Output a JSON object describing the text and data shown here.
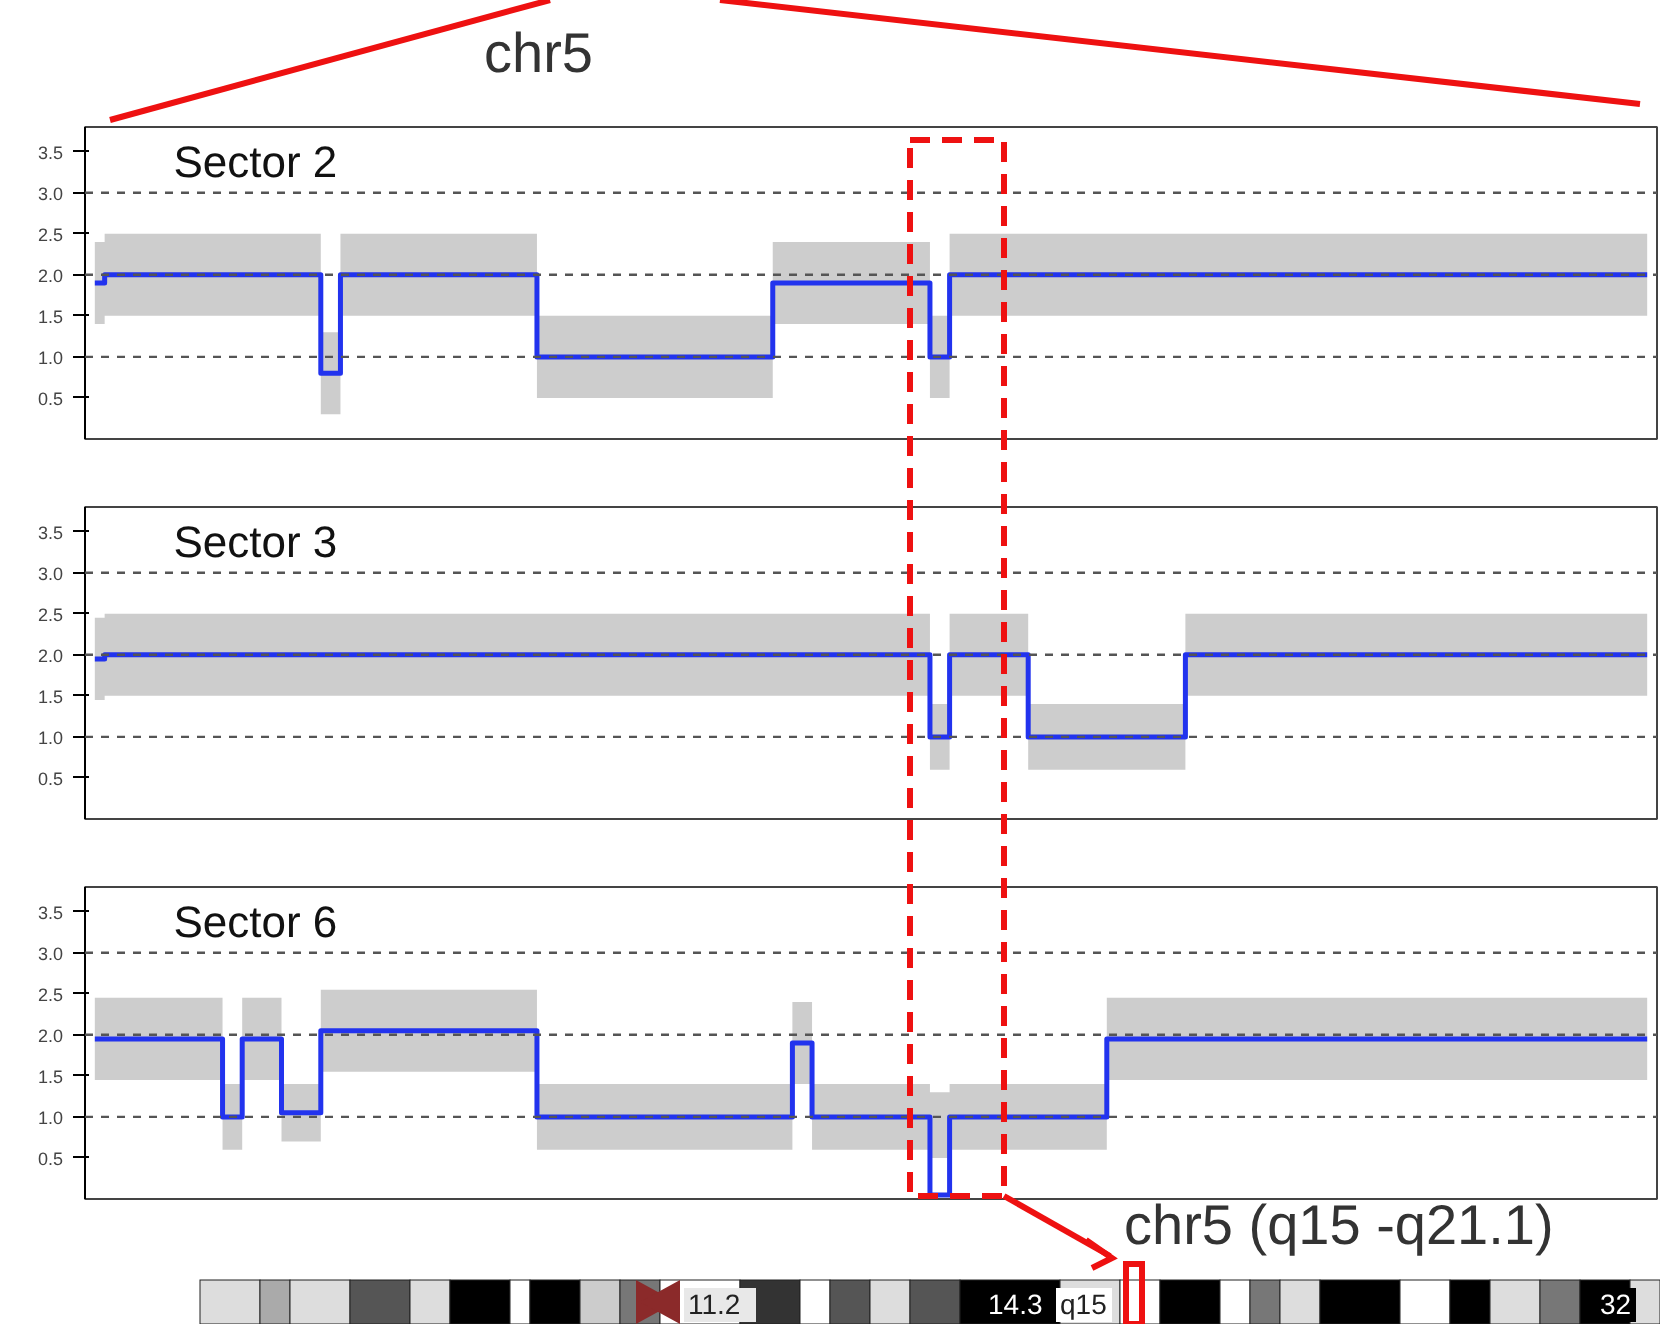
{
  "chart_data": [
    {
      "type": "step",
      "title": "Sector 2",
      "categories": [
        null,
        null,
        null,
        null,
        null,
        null,
        null,
        null,
        null,
        null,
        null,
        null,
        null,
        null,
        null,
        null,
        null,
        null,
        null,
        null,
        null,
        null,
        null,
        null,
        null,
        null,
        null,
        null,
        null,
        null,
        null,
        null,
        null,
        null,
        null,
        null,
        null,
        null,
        null,
        null,
        null,
        null,
        null,
        null,
        null,
        null,
        null,
        null,
        null,
        null,
        null,
        null,
        null,
        null,
        null,
        null,
        null,
        null,
        null,
        null,
        null,
        null,
        null,
        null,
        null,
        null,
        null,
        null,
        null,
        null,
        null,
        null,
        null,
        null,
        null,
        null,
        null,
        null,
        null,
        null
      ],
      "ylim": [
        0,
        3.8
      ],
      "yticks": [
        {
          "value": 0.5,
          "label": "0.5"
        },
        {
          "value": 1.0,
          "label": "1.0"
        },
        {
          "value": 1.5,
          "label": "1.5"
        },
        {
          "value": 2.0,
          "label": "2.0"
        },
        {
          "value": 2.5,
          "label": "2.5"
        },
        {
          "value": 3.0,
          "label": "3.0"
        },
        {
          "value": 3.5,
          "label": "3.5"
        }
      ],
      "tick_labels": "y",
      "grid": false,
      "ref_lines": [
        {
          "axis": "y",
          "value": 1.0,
          "color": "#555555",
          "line_style": "dashed"
        },
        {
          "axis": "y",
          "value": 2.0,
          "color": "#555555",
          "line_style": "dashed"
        },
        {
          "axis": "y",
          "value": 3.0,
          "color": "#555555",
          "line_style": "dashed"
        }
      ],
      "series": [
        {
          "color": "#2233ee",
          "values": [
            1.9,
            2.0,
            2.0,
            2.0,
            2.0,
            2.0,
            2.0,
            2.0,
            2.0,
            2.0,
            2.0,
            2.0,
            0.8,
            2.0,
            2.0,
            2.0,
            2.0,
            2.0,
            2.0,
            2.0,
            2.0,
            2.0,
            2.0,
            1.0,
            1.0,
            1.0,
            1.0,
            1.0,
            1.0,
            1.0,
            1.0,
            1.0,
            1.0,
            1.0,
            1.0,
            1.9,
            1.9,
            1.9,
            1.9,
            1.9,
            1.9,
            1.9,
            1.9,
            1.0,
            2.0,
            2.0,
            2.0,
            2.0,
            2.0,
            2.0,
            2.0,
            2.0,
            2.0,
            2.0,
            2.0,
            2.0,
            2.0,
            2.0,
            2.0,
            2.0,
            2.0,
            2.0,
            2.0,
            2.0,
            2.0,
            2.0,
            2.0,
            2.0,
            2.0,
            2.0,
            2.0,
            2.0,
            2.0,
            2.0,
            2.0,
            2.0,
            2.0,
            2.0,
            2.0,
            2.0
          ],
          "lower": [
            1.4,
            1.5,
            1.5,
            1.5,
            1.5,
            1.5,
            1.5,
            1.5,
            1.5,
            1.5,
            1.5,
            1.5,
            0.3,
            1.5,
            1.5,
            1.5,
            1.5,
            1.5,
            1.5,
            1.5,
            1.5,
            1.5,
            1.5,
            0.5,
            0.5,
            0.5,
            0.5,
            0.5,
            0.5,
            0.5,
            0.5,
            0.5,
            0.5,
            0.5,
            0.5,
            1.4,
            1.4,
            1.4,
            1.4,
            1.4,
            1.4,
            1.4,
            1.4,
            0.5,
            1.5,
            1.5,
            1.5,
            1.5,
            1.5,
            1.5,
            1.5,
            1.5,
            1.5,
            1.5,
            1.5,
            1.5,
            1.5,
            1.5,
            1.5,
            1.5,
            1.5,
            1.5,
            1.5,
            1.5,
            1.5,
            1.5,
            1.5,
            1.5,
            1.5,
            1.5,
            1.5,
            1.5,
            1.5,
            1.5,
            1.5,
            1.5,
            1.5,
            1.5,
            1.5,
            1.5
          ],
          "upper": [
            2.4,
            2.5,
            2.5,
            2.5,
            2.5,
            2.5,
            2.5,
            2.5,
            2.5,
            2.5,
            2.5,
            2.5,
            1.3,
            2.5,
            2.5,
            2.5,
            2.5,
            2.5,
            2.5,
            2.5,
            2.5,
            2.5,
            2.5,
            1.5,
            1.5,
            1.5,
            1.5,
            1.5,
            1.5,
            1.5,
            1.5,
            1.5,
            1.5,
            1.5,
            1.5,
            2.4,
            2.4,
            2.4,
            2.4,
            2.4,
            2.4,
            2.4,
            2.4,
            1.5,
            2.5,
            2.5,
            2.5,
            2.5,
            2.5,
            2.5,
            2.5,
            2.5,
            2.5,
            2.5,
            2.5,
            2.5,
            2.5,
            2.5,
            2.5,
            2.5,
            2.5,
            2.5,
            2.5,
            2.5,
            2.5,
            2.5,
            2.5,
            2.5,
            2.5,
            2.5,
            2.5,
            2.5,
            2.5,
            2.5,
            2.5,
            2.5,
            2.5,
            2.5,
            2.5,
            2.5
          ]
        }
      ],
      "annotations": [
        "chr5"
      ]
    },
    {
      "type": "step",
      "title": "Sector 3",
      "categories": [
        null,
        null,
        null,
        null,
        null,
        null,
        null,
        null,
        null,
        null,
        null,
        null,
        null,
        null,
        null,
        null,
        null,
        null,
        null,
        null,
        null,
        null,
        null,
        null,
        null,
        null,
        null,
        null,
        null,
        null,
        null,
        null,
        null,
        null,
        null,
        null,
        null,
        null,
        null,
        null,
        null,
        null,
        null,
        null,
        null,
        null,
        null,
        null,
        null,
        null,
        null,
        null,
        null,
        null,
        null,
        null,
        null,
        null,
        null,
        null,
        null,
        null,
        null,
        null,
        null,
        null,
        null,
        null,
        null,
        null,
        null,
        null,
        null,
        null,
        null,
        null,
        null,
        null,
        null,
        null
      ],
      "ylim": [
        0,
        3.8
      ],
      "yticks": [
        {
          "value": 0.5,
          "label": "0.5"
        },
        {
          "value": 1.0,
          "label": "1.0"
        },
        {
          "value": 1.5,
          "label": "1.5"
        },
        {
          "value": 2.0,
          "label": "2.0"
        },
        {
          "value": 2.5,
          "label": "2.5"
        },
        {
          "value": 3.0,
          "label": "3.0"
        },
        {
          "value": 3.5,
          "label": "3.5"
        }
      ],
      "tick_labels": "y",
      "grid": false,
      "ref_lines": [
        {
          "axis": "y",
          "value": 1.0,
          "color": "#555555",
          "line_style": "dashed"
        },
        {
          "axis": "y",
          "value": 2.0,
          "color": "#555555",
          "line_style": "dashed"
        },
        {
          "axis": "y",
          "value": 3.0,
          "color": "#555555",
          "line_style": "dashed"
        }
      ],
      "series": [
        {
          "color": "#2233ee",
          "values": [
            1.95,
            2.0,
            2.0,
            2.0,
            2.0,
            2.0,
            2.0,
            2.0,
            2.0,
            2.0,
            2.0,
            2.0,
            2.0,
            2.0,
            2.0,
            2.0,
            2.0,
            2.0,
            2.0,
            2.0,
            2.0,
            2.0,
            2.0,
            2.0,
            2.0,
            2.0,
            2.0,
            2.0,
            2.0,
            2.0,
            2.0,
            2.0,
            2.0,
            2.0,
            2.0,
            2.0,
            2.0,
            2.0,
            2.0,
            2.0,
            2.0,
            2.0,
            2.0,
            1.0,
            2.0,
            2.0,
            2.0,
            2.0,
            1.0,
            1.0,
            1.0,
            1.0,
            1.0,
            1.0,
            1.0,
            1.0,
            2.0,
            2.0,
            2.0,
            2.0,
            2.0,
            2.0,
            2.0,
            2.0,
            2.0,
            2.0,
            2.0,
            2.0,
            2.0,
            2.0,
            2.0,
            2.0,
            2.0,
            2.0,
            2.0,
            2.0,
            2.0,
            2.0,
            2.0,
            2.0
          ],
          "lower": [
            1.45,
            1.5,
            1.5,
            1.5,
            1.5,
            1.5,
            1.5,
            1.5,
            1.5,
            1.5,
            1.5,
            1.5,
            1.5,
            1.5,
            1.5,
            1.5,
            1.5,
            1.5,
            1.5,
            1.5,
            1.5,
            1.5,
            1.5,
            1.5,
            1.5,
            1.5,
            1.5,
            1.5,
            1.5,
            1.5,
            1.5,
            1.5,
            1.5,
            1.5,
            1.5,
            1.5,
            1.5,
            1.5,
            1.5,
            1.5,
            1.5,
            1.5,
            1.5,
            0.6,
            1.5,
            1.5,
            1.5,
            1.5,
            0.6,
            0.6,
            0.6,
            0.6,
            0.6,
            0.6,
            0.6,
            0.6,
            1.5,
            1.5,
            1.5,
            1.5,
            1.5,
            1.5,
            1.5,
            1.5,
            1.5,
            1.5,
            1.5,
            1.5,
            1.5,
            1.5,
            1.5,
            1.5,
            1.5,
            1.5,
            1.5,
            1.5,
            1.5,
            1.5,
            1.5,
            1.5
          ],
          "upper": [
            2.45,
            2.5,
            2.5,
            2.5,
            2.5,
            2.5,
            2.5,
            2.5,
            2.5,
            2.5,
            2.5,
            2.5,
            2.5,
            2.5,
            2.5,
            2.5,
            2.5,
            2.5,
            2.5,
            2.5,
            2.5,
            2.5,
            2.5,
            2.5,
            2.5,
            2.5,
            2.5,
            2.5,
            2.5,
            2.5,
            2.5,
            2.5,
            2.5,
            2.5,
            2.5,
            2.5,
            2.5,
            2.5,
            2.5,
            2.5,
            2.5,
            2.5,
            2.5,
            1.4,
            2.5,
            2.5,
            2.5,
            2.5,
            1.4,
            1.4,
            1.4,
            1.4,
            1.4,
            1.4,
            1.4,
            1.4,
            2.5,
            2.5,
            2.5,
            2.5,
            2.5,
            2.5,
            2.5,
            2.5,
            2.5,
            2.5,
            2.5,
            2.5,
            2.5,
            2.5,
            2.5,
            2.5,
            2.5,
            2.5,
            2.5,
            2.5,
            2.5,
            2.5,
            2.5,
            2.5
          ]
        }
      ]
    },
    {
      "type": "step",
      "title": "Sector 6",
      "categories": [
        null,
        null,
        null,
        null,
        null,
        null,
        null,
        null,
        null,
        null,
        null,
        null,
        null,
        null,
        null,
        null,
        null,
        null,
        null,
        null,
        null,
        null,
        null,
        null,
        null,
        null,
        null,
        null,
        null,
        null,
        null,
        null,
        null,
        null,
        null,
        null,
        null,
        null,
        null,
        null,
        null,
        null,
        null,
        null,
        null,
        null,
        null,
        null,
        null,
        null,
        null,
        null,
        null,
        null,
        null,
        null,
        null,
        null,
        null,
        null,
        null,
        null,
        null,
        null,
        null,
        null,
        null,
        null,
        null,
        null,
        null,
        null,
        null,
        null,
        null,
        null,
        null,
        null,
        null,
        null
      ],
      "ylim": [
        0,
        3.8
      ],
      "yticks": [
        {
          "value": 0.5,
          "label": "0.5"
        },
        {
          "value": 1.0,
          "label": "1.0"
        },
        {
          "value": 1.5,
          "label": "1.5"
        },
        {
          "value": 2.0,
          "label": "2.0"
        },
        {
          "value": 2.5,
          "label": "2.5"
        },
        {
          "value": 3.0,
          "label": "3.0"
        },
        {
          "value": 3.5,
          "label": "3.5"
        }
      ],
      "tick_labels": "y",
      "grid": false,
      "ref_lines": [
        {
          "axis": "y",
          "value": 1.0,
          "color": "#555555",
          "line_style": "dashed"
        },
        {
          "axis": "y",
          "value": 2.0,
          "color": "#555555",
          "line_style": "dashed"
        },
        {
          "axis": "y",
          "value": 3.0,
          "color": "#555555",
          "line_style": "dashed"
        }
      ],
      "series": [
        {
          "color": "#2233ee",
          "values": [
            1.95,
            1.95,
            1.95,
            1.95,
            1.95,
            1.95,
            1.95,
            1.0,
            1.95,
            1.95,
            1.05,
            1.05,
            2.05,
            2.05,
            2.05,
            2.05,
            2.05,
            2.05,
            2.05,
            2.05,
            2.05,
            2.05,
            2.05,
            1.0,
            1.0,
            1.0,
            1.0,
            1.0,
            1.0,
            1.0,
            1.0,
            1.0,
            1.0,
            1.0,
            1.0,
            1.0,
            1.9,
            1.0,
            1.0,
            1.0,
            1.0,
            1.0,
            1.0,
            0.05,
            1.0,
            1.0,
            1.0,
            1.0,
            1.0,
            1.0,
            1.0,
            1.0,
            1.95,
            1.95,
            1.95,
            1.95,
            1.95,
            1.95,
            1.95,
            1.95,
            1.95,
            1.95,
            1.95,
            1.95,
            1.95,
            1.95,
            1.95,
            1.95,
            1.95,
            1.95,
            1.95,
            1.95,
            1.95,
            1.95,
            1.95,
            1.95,
            1.95,
            1.95,
            1.95,
            1.95
          ],
          "lower": [
            1.45,
            1.45,
            1.45,
            1.45,
            1.45,
            1.45,
            1.45,
            0.6,
            1.45,
            1.45,
            0.7,
            0.7,
            1.55,
            1.55,
            1.55,
            1.55,
            1.55,
            1.55,
            1.55,
            1.55,
            1.55,
            1.55,
            1.55,
            0.6,
            0.6,
            0.6,
            0.6,
            0.6,
            0.6,
            0.6,
            0.6,
            0.6,
            0.6,
            0.6,
            0.6,
            0.6,
            1.4,
            0.6,
            0.6,
            0.6,
            0.6,
            0.6,
            0.6,
            0.5,
            0.6,
            0.6,
            0.6,
            0.6,
            0.6,
            0.6,
            0.6,
            0.6,
            1.45,
            1.45,
            1.45,
            1.45,
            1.45,
            1.45,
            1.45,
            1.45,
            1.45,
            1.45,
            1.45,
            1.45,
            1.45,
            1.45,
            1.45,
            1.45,
            1.45,
            1.45,
            1.45,
            1.45,
            1.45,
            1.45,
            1.45,
            1.45,
            1.45,
            1.45,
            1.45,
            1.45
          ],
          "upper": [
            2.45,
            2.45,
            2.45,
            2.45,
            2.45,
            2.45,
            2.45,
            1.4,
            2.45,
            2.45,
            1.4,
            1.4,
            2.55,
            2.55,
            2.55,
            2.55,
            2.55,
            2.55,
            2.55,
            2.55,
            2.55,
            2.55,
            2.55,
            1.4,
            1.4,
            1.4,
            1.4,
            1.4,
            1.4,
            1.4,
            1.4,
            1.4,
            1.4,
            1.4,
            1.4,
            1.4,
            2.4,
            1.4,
            1.4,
            1.4,
            1.4,
            1.4,
            1.4,
            1.3,
            1.4,
            1.4,
            1.4,
            1.4,
            1.4,
            1.4,
            1.4,
            1.4,
            2.45,
            2.45,
            2.45,
            2.45,
            2.45,
            2.45,
            2.45,
            2.45,
            2.45,
            2.45,
            2.45,
            2.45,
            2.45,
            2.45,
            2.45,
            2.45,
            2.45,
            2.45,
            2.45,
            2.45,
            2.45,
            2.45,
            2.45,
            2.45,
            2.45,
            2.45,
            2.45,
            2.45
          ]
        }
      ],
      "annotations": [
        "chr5 (q15 -q21.1)",
        "11.2",
        "14.3",
        "q15",
        "32"
      ]
    }
  ]
}
